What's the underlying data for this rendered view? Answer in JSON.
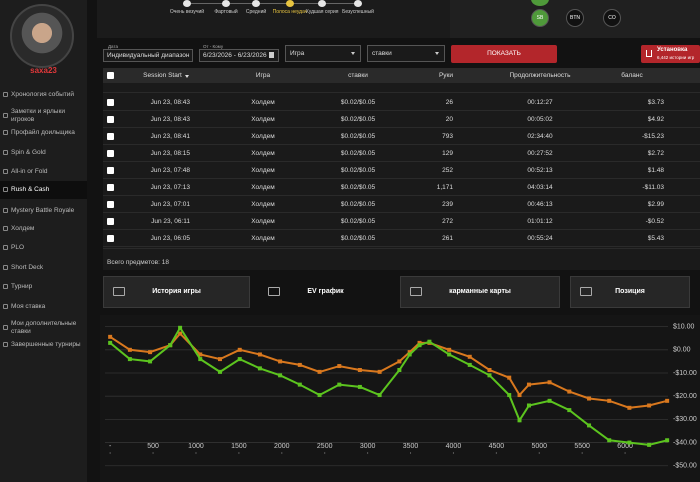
{
  "sidebar": {
    "username": "saxa23",
    "menu": [
      "Хронология событий",
      "Заметки и ярлыки игроков",
      "Профайл доильщика",
      "Spin & Gold",
      "All-in or Fold",
      "Rush & Cash",
      "Mystery Battle Royale",
      "Холдем",
      "PLO",
      "Short Deck",
      "Турнир",
      "Моя ставка",
      "Мои дополнительные ставки",
      "Завершенные турниры"
    ]
  },
  "luck_filters": [
    "Очень везучий",
    "Фартовый",
    "Средний",
    "Полоса неудач",
    "Худшая серия",
    "Безуспешный"
  ],
  "positions": [
    "SB",
    "BTN",
    "CO"
  ],
  "filters": {
    "date_label": "Дата",
    "date_value": "Индивидуальный диапазон",
    "range_label": "От - Кому",
    "range_value": "6/23/2026 - 6/23/2026",
    "game": "Игра",
    "stakes": "ставки",
    "show_button": "ПОКАЗАТЬ",
    "install_title": "Установка",
    "install_sub": "6,442 истории игр"
  },
  "table": {
    "columns": [
      "Session Start",
      "Игра",
      "ставки",
      "Руки",
      "Продолжительность",
      "баланс"
    ],
    "rows": [
      [
        "Jun 23, 08:43",
        "Холдем",
        "$0.02/$0.05",
        "26",
        "00:12:27",
        "$3.73"
      ],
      [
        "Jun 23, 08:43",
        "Холдем",
        "$0.02/$0.05",
        "20",
        "00:05:02",
        "$4.92"
      ],
      [
        "Jun 23, 08:41",
        "Холдем",
        "$0.02/$0.05",
        "793",
        "02:34:40",
        "-$15.23"
      ],
      [
        "Jun 23, 08:15",
        "Холдем",
        "$0.02/$0.05",
        "129",
        "00:27:52",
        "$2.72"
      ],
      [
        "Jun 23, 07:48",
        "Холдем",
        "$0.02/$0.05",
        "252",
        "00:52:13",
        "$1.48"
      ],
      [
        "Jun 23, 07:13",
        "Холдем",
        "$0.02/$0.05",
        "1,171",
        "04:03:14",
        "-$11.03"
      ],
      [
        "Jun 23, 07:01",
        "Холдем",
        "$0.02/$0.05",
        "239",
        "00:46:13",
        "$2.99"
      ],
      [
        "Jun 23, 06:11",
        "Холдем",
        "$0.02/$0.05",
        "272",
        "01:01:12",
        "-$0.52"
      ],
      [
        "Jun 23, 06:05",
        "Холдем",
        "$0.02/$0.05",
        "261",
        "00:55:24",
        "$5.43"
      ]
    ],
    "total": "Всего предметов: 18"
  },
  "tabs": [
    "История игры",
    "EV график",
    "карманные карты",
    "Позиция"
  ],
  "chart_data": {
    "type": "line",
    "x": [
      0,
      230,
      465,
      700,
      815,
      1050,
      1280,
      1510,
      1745,
      1980,
      2210,
      2440,
      2670,
      2910,
      3140,
      3370,
      3490,
      3605,
      3720,
      3950,
      4190,
      4420,
      4650,
      4770,
      4880,
      5120,
      5350,
      5580,
      5815,
      6050,
      6280,
      6490
    ],
    "series": [
      {
        "color": "#d9781e",
        "values": [
          5.6,
          0,
          -1,
          2,
          7,
          -2,
          -4,
          0,
          -2,
          -5,
          -6.5,
          -9.5,
          -7,
          -8.7,
          -9.5,
          -5,
          -1,
          3,
          3,
          0,
          -3,
          -8.7,
          -12,
          -19.5,
          -15,
          -14,
          -18,
          -21,
          -22,
          -25,
          -24,
          -22
        ]
      },
      {
        "color": "#5cc41f",
        "values": [
          3,
          -4,
          -5,
          2,
          9.5,
          -4,
          -9.5,
          -4,
          -8,
          -11,
          -15,
          -19.5,
          -15,
          -16,
          -19.5,
          -8.7,
          -2,
          2,
          3.5,
          -2,
          -6.5,
          -11,
          -19.5,
          -30.4,
          -24,
          -22,
          -26,
          -32.6,
          -39,
          -40,
          -41,
          -39
        ]
      }
    ],
    "xlim": [
      -60,
      6500
    ],
    "ylim": [
      -57,
      12
    ],
    "xticks": [
      {
        "value": 0,
        "label": "-"
      },
      500,
      1000,
      1500,
      2000,
      2500,
      3000,
      3500,
      4000,
      4500,
      5000,
      5500,
      6000
    ],
    "yticks": [
      {
        "value": 10,
        "label": "$10.00"
      },
      {
        "value": 0,
        "label": "$0.00"
      },
      {
        "value": -10,
        "label": "-$10.00"
      },
      {
        "value": -20,
        "label": "-$20.00"
      },
      {
        "value": -30,
        "label": "-$30.00"
      },
      {
        "value": -40,
        "label": "-$40.00"
      },
      {
        "value": -50,
        "label": "-$50.00"
      }
    ],
    "grid": true
  }
}
